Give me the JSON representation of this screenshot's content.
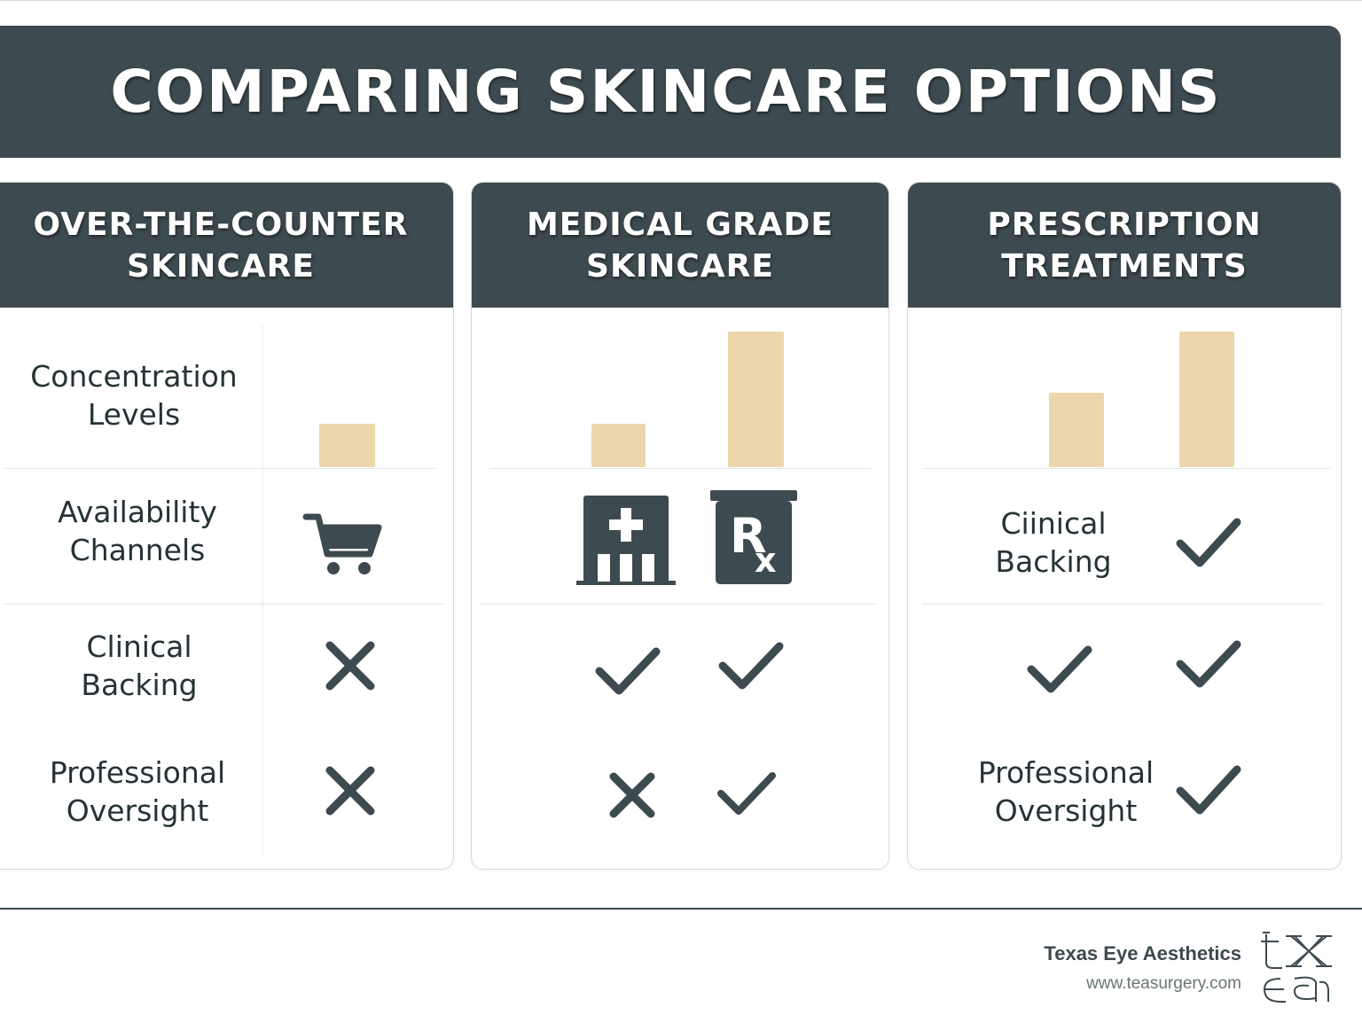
{
  "title": "COMPARING SKINCARE OPTIONS",
  "columns": [
    {
      "heading_line1": "OVER-THE-COUNTER",
      "heading_line2": "SKINCARE"
    },
    {
      "heading_line1": "MEDICAL GRADE",
      "heading_line2": "SKINCARE"
    },
    {
      "heading_line1": "PRESCRIPTION",
      "heading_line2": "TREATMENTS"
    }
  ],
  "rows": {
    "concentration": {
      "line1": "Concentration",
      "line2": "Levels"
    },
    "availability": {
      "line1": "Availability",
      "line2": "Channels"
    },
    "clinical": {
      "line1": "Clinical",
      "line2": "Backing"
    },
    "clinical_alt": {
      "line1": "Ciinical",
      "line2": "Backing"
    },
    "oversight": {
      "line1": "Professional",
      "line2": "Oversight"
    }
  },
  "concentration_bars": {
    "otc": [
      0.32
    ],
    "medical": [
      0.32,
      1.0
    ],
    "prescription": [
      0.55,
      1.0
    ]
  },
  "icons": {
    "otc_availability": "shopping-cart-icon",
    "medical_availability": [
      "hospital-building-icon",
      "rx-prescription-icon"
    ],
    "otc_clinical": "x-icon",
    "otc_oversight": "x-icon",
    "medical_clinical": [
      "check-icon",
      "check-icon"
    ],
    "medical_oversight": [
      "x-icon",
      "check-icon"
    ],
    "prescription_clinical_row2": "check-icon",
    "prescription_clinical_row3": [
      "check-icon",
      "check-icon"
    ],
    "prescription_oversight": "check-icon"
  },
  "colors": {
    "header": "#3d4a4f",
    "bar": "#ecd7ad",
    "text": "#263236"
  },
  "footer": {
    "brand": "Texas Eye Aesthetics",
    "url": "www.teasurgery.com",
    "logo_letters": "tx ea"
  }
}
